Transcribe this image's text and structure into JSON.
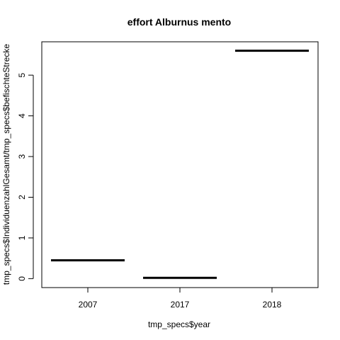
{
  "chart_data": {
    "type": "boxplot",
    "title": "effort Alburnus mento",
    "xlabel": "tmp_specs$year",
    "ylabel": "tmp_specs$IndividuenzahlGesamt/tmp_specs$befischteStrecke",
    "categories": [
      "2007",
      "2017",
      "2018"
    ],
    "values": [
      0.45,
      0.02,
      5.6
    ],
    "ylim": [
      -0.22,
      5.82
    ],
    "yticks": [
      "0",
      "1",
      "2",
      "3",
      "4",
      "5"
    ],
    "grid": false,
    "legend": "none"
  }
}
